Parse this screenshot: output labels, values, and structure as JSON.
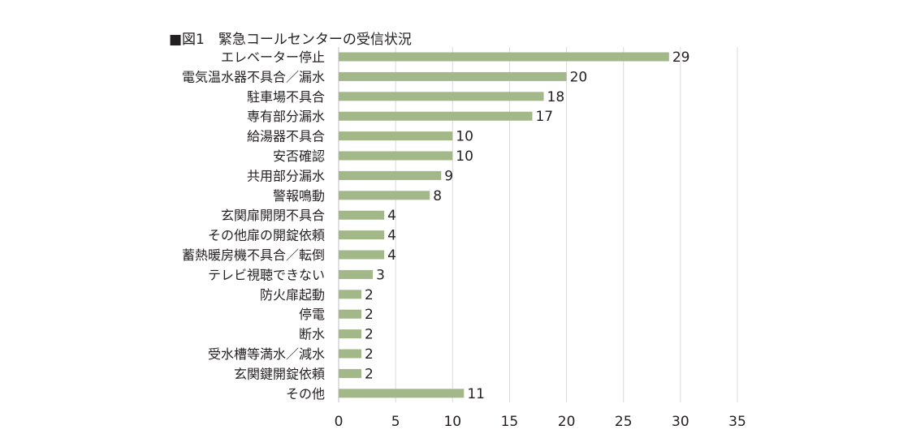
{
  "chart_data": {
    "type": "bar",
    "orientation": "horizontal",
    "title": "■図1　緊急コールセンターの受信状況",
    "categories": [
      "エレベーター停止",
      "電気温水器不具合／漏水",
      "駐車場不具合",
      "専有部分漏水",
      "給湯器不具合",
      "安否確認",
      "共用部分漏水",
      "警報鳴動",
      "玄関扉開閉不具合",
      "その他扉の開錠依頼",
      "蓄熱暖房機不具合／転倒",
      "テレビ視聴できない",
      "防火扉起動",
      "停電",
      "断水",
      "受水槽等満水／減水",
      "玄関鍵開錠依頼",
      "その他"
    ],
    "values": [
      29,
      20,
      18,
      17,
      10,
      10,
      9,
      8,
      4,
      4,
      4,
      3,
      2,
      2,
      2,
      2,
      2,
      11
    ],
    "xlim": [
      0,
      35
    ],
    "xticks": [
      "0",
      "5",
      "10",
      "15",
      "20",
      "25",
      "30",
      "35"
    ],
    "grid": "vertical",
    "legend": "none",
    "bar_color": "#a3b889",
    "grid_color": "#d9d9d9",
    "data_labels": [
      "29",
      "20",
      "18",
      "17",
      "10",
      "10",
      "9",
      "8",
      "4",
      "4",
      "4",
      "3",
      "2",
      "2",
      "2",
      "2",
      "2",
      "11"
    ]
  }
}
